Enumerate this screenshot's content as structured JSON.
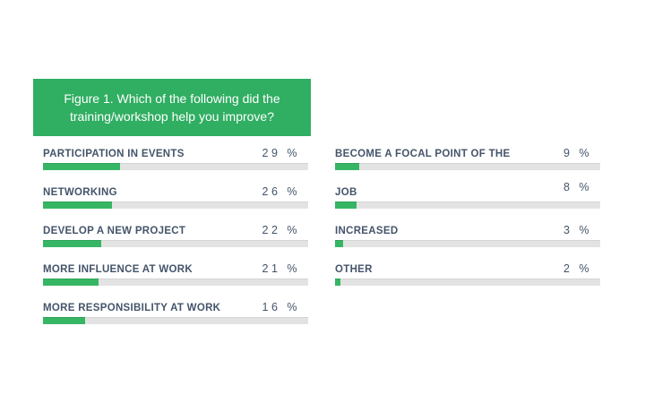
{
  "colors": {
    "background": "#ffffff",
    "title_bg": "#30ae62",
    "title_text": "#ffffff",
    "bar_fill": "#36b664",
    "bar_track": "#e3e3e3",
    "label_text": "#44546a"
  },
  "chart_data": {
    "type": "bar",
    "orientation": "horizontal",
    "title": "Figure 1. Which of the following did the training/workshop help you improve?",
    "unit": "%",
    "xlim": [
      0,
      100
    ],
    "grid": false,
    "legend": false,
    "columns": [
      {
        "items": [
          {
            "label": "PARTICIPATION IN EVENTS",
            "value": 29,
            "display": "29 %"
          },
          {
            "label": "NETWORKING",
            "value": 26,
            "display": "26 %"
          },
          {
            "label": "DEVELOP A NEW PROJECT",
            "value": 22,
            "display": "22 %"
          },
          {
            "label": "MORE INFLUENCE AT WORK",
            "value": 21,
            "display": "21 %"
          },
          {
            "label": "MORE RESPONSIBILITY AT WORK",
            "value": 16,
            "display": "16 %"
          }
        ]
      },
      {
        "items": [
          {
            "label": "BECOME A FOCAL POINT OF THE",
            "value": 9,
            "display": "9 %"
          },
          {
            "label": "JOB",
            "value": 8,
            "display": "8 %"
          },
          {
            "label": "INCREASED",
            "value": 3,
            "display": "3 %"
          },
          {
            "label": "OTHER",
            "value": 2,
            "display": "2 %"
          }
        ]
      }
    ]
  }
}
